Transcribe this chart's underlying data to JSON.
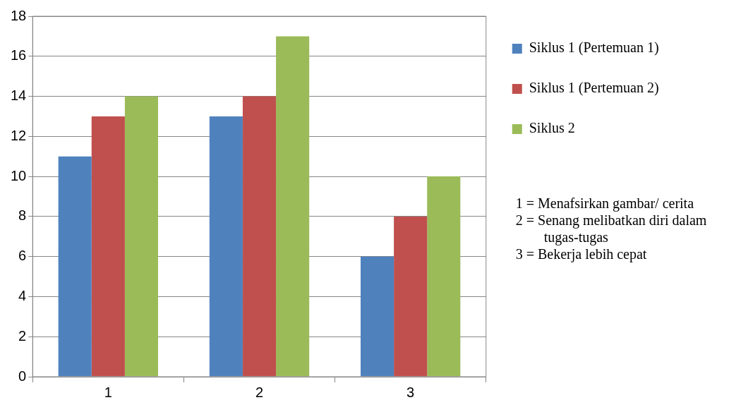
{
  "chart_data": {
    "type": "bar",
    "categories": [
      "1",
      "2",
      "3"
    ],
    "series": [
      {
        "name": "Siklus 1 (Pertemuan 1)",
        "color": "#4f81bd",
        "values": [
          11,
          13,
          6
        ]
      },
      {
        "name": "Siklus 1 (Pertemuan 2)",
        "color": "#c0504d",
        "values": [
          13,
          14,
          8
        ]
      },
      {
        "name": "Siklus 2",
        "color": "#9bbb59",
        "values": [
          14,
          17,
          10
        ]
      }
    ],
    "ylim": [
      0,
      18
    ],
    "yticks": [
      0,
      2,
      4,
      6,
      8,
      10,
      12,
      14,
      16,
      18
    ],
    "grid": "y",
    "legend": "top right",
    "annotations": [
      "1 = Menafsirkan gambar/ cerita",
      "2 = Senang melibatkan diri dalam tugas-tugas",
      "3 = Bekerja lebih cepat"
    ]
  }
}
